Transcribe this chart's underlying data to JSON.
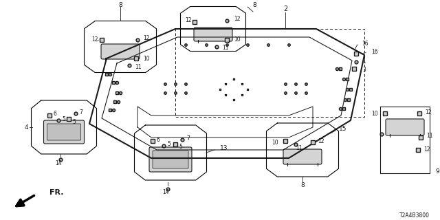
{
  "bg": "#ffffff",
  "part_code": "T2A4B3800",
  "fr_label": "FR.",
  "roof_color": "#e8e8e8",
  "line_color": "#1a1a1a"
}
